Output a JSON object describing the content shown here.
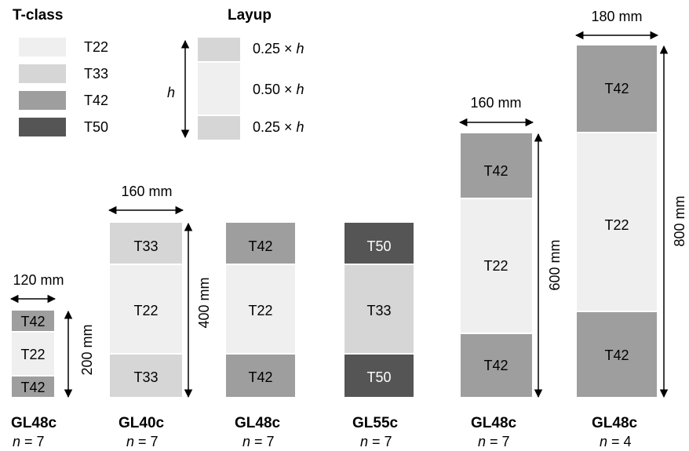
{
  "legend": {
    "title": "T-class",
    "classes": [
      {
        "label": "T22",
        "color": "#efefef"
      },
      {
        "label": "T33",
        "color": "#d6d6d6"
      },
      {
        "label": "T42",
        "color": "#9e9e9e"
      },
      {
        "label": "T50",
        "color": "#555555"
      }
    ]
  },
  "layup": {
    "title": "Layup",
    "height_symbol": "h",
    "rows": [
      {
        "prefix": "0.25 × ",
        "symbol": "h",
        "color": "#d6d6d6"
      },
      {
        "prefix": "0.50 × ",
        "symbol": "h",
        "color": "#efefef"
      },
      {
        "prefix": "0.25 × ",
        "symbol": "h",
        "color": "#d6d6d6"
      }
    ]
  },
  "beams": [
    {
      "grade": "GL48c",
      "n_label": "n",
      "n_eq": " = 7",
      "width_label": "120 mm",
      "height_label": "200 mm",
      "layers": [
        {
          "label": "T42",
          "color": "#9e9e9e"
        },
        {
          "label": "T22",
          "color": "#efefef"
        },
        {
          "label": "T42",
          "color": "#9e9e9e"
        }
      ]
    },
    {
      "grade": "GL40c",
      "n_label": "n",
      "n_eq": " = 7",
      "width_label": "160 mm",
      "height_label": "400 mm",
      "layers": [
        {
          "label": "T33",
          "color": "#d6d6d6"
        },
        {
          "label": "T22",
          "color": "#efefef"
        },
        {
          "label": "T33",
          "color": "#d6d6d6"
        }
      ]
    },
    {
      "grade": "GL48c",
      "n_label": "n",
      "n_eq": " = 7",
      "width_label": "",
      "height_label": "",
      "layers": [
        {
          "label": "T42",
          "color": "#9e9e9e"
        },
        {
          "label": "T22",
          "color": "#efefef"
        },
        {
          "label": "T42",
          "color": "#9e9e9e"
        }
      ]
    },
    {
      "grade": "GL55c",
      "n_label": "n",
      "n_eq": " = 7",
      "width_label": "",
      "height_label": "",
      "layers": [
        {
          "label": "T50",
          "color": "#555555"
        },
        {
          "label": "T33",
          "color": "#d6d6d6"
        },
        {
          "label": "T50",
          "color": "#555555"
        }
      ]
    },
    {
      "grade": "GL48c",
      "n_label": "n",
      "n_eq": " = 7",
      "width_label": "160 mm",
      "height_label": "600 mm",
      "layers": [
        {
          "label": "T42",
          "color": "#9e9e9e"
        },
        {
          "label": "T22",
          "color": "#efefef"
        },
        {
          "label": "T42",
          "color": "#9e9e9e"
        }
      ]
    },
    {
      "grade": "GL48c",
      "n_label": "n",
      "n_eq": " = 4",
      "width_label": "180 mm",
      "height_label": "800 mm",
      "layers": [
        {
          "label": "T42",
          "color": "#9e9e9e"
        },
        {
          "label": "T22",
          "color": "#efefef"
        },
        {
          "label": "T42",
          "color": "#9e9e9e"
        }
      ]
    }
  ]
}
